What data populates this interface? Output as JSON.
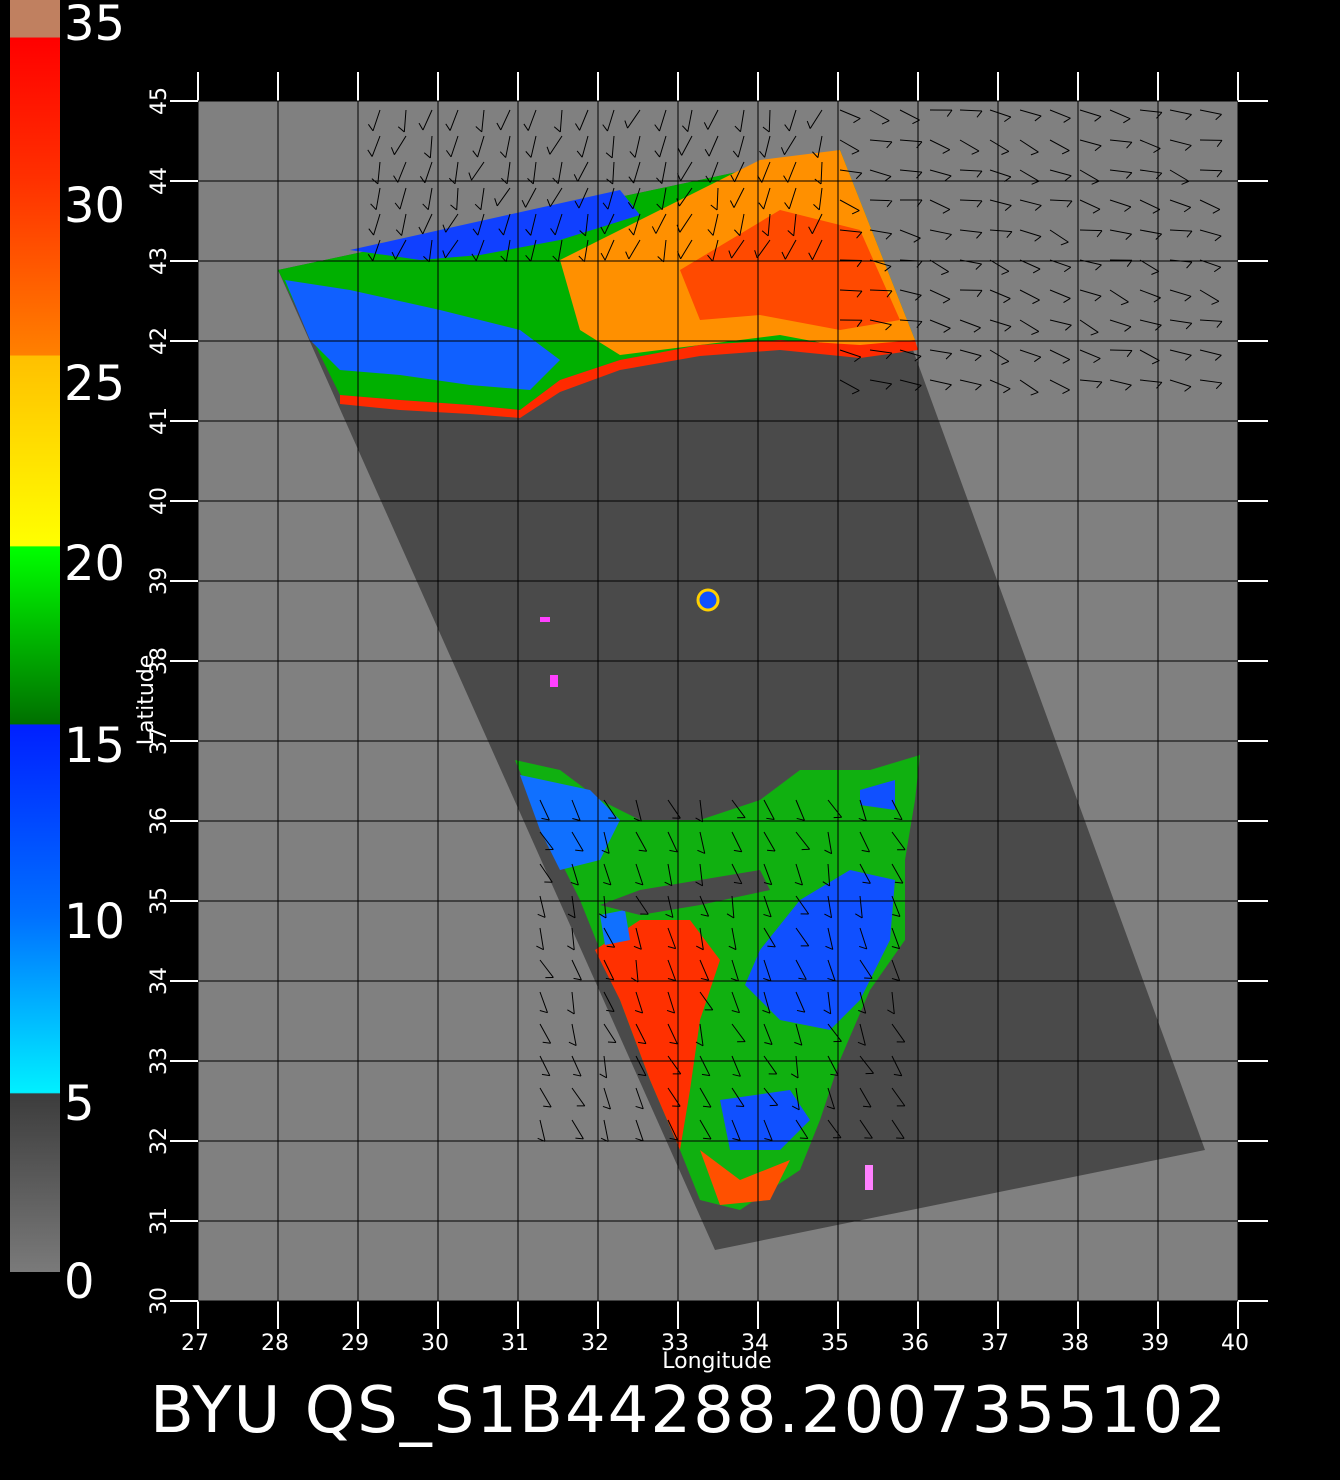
{
  "colorbar": {
    "labels": [
      "35",
      "30",
      "25",
      "20",
      "15",
      "10",
      "5",
      "0"
    ],
    "stops": [
      "#7a7a7a",
      "#3c3c3c",
      "#00f0ff",
      "#0060ff",
      "#0020ff",
      "#007000",
      "#00ff00",
      "#ffff00",
      "#ffc000",
      "#ff8000",
      "#ff2000",
      "#ff0000",
      "#c08060"
    ]
  },
  "map": {
    "longitude_ticks": [
      "27",
      "28",
      "29",
      "30",
      "31",
      "32",
      "33",
      "34",
      "35",
      "36",
      "37",
      "38",
      "39",
      "40"
    ],
    "latitude_ticks": [
      "30",
      "31",
      "32",
      "33",
      "34",
      "35",
      "36",
      "37",
      "38",
      "39",
      "40",
      "41",
      "42",
      "43",
      "44",
      "45"
    ],
    "xlabel": "Longitude",
    "ylabel": "Latitude",
    "background_color": "#808080",
    "swath_color": "#4a4a4a"
  },
  "caption": "BYU  QS_S1B44288.2007355102"
}
